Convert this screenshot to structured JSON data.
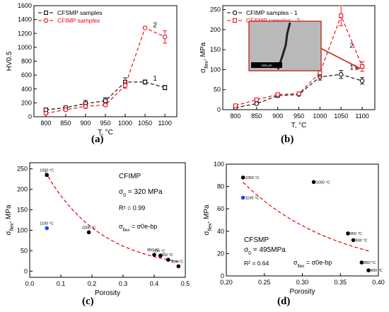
{
  "panel_labels": [
    "(a)",
    "(b)",
    "(c)",
    "(d)"
  ],
  "chart_data": [
    {
      "type": "line",
      "panel": "(a)",
      "xlabel": "T, °C",
      "ylabel": "HV0.5",
      "x": [
        800,
        850,
        900,
        950,
        1000,
        1050,
        1100
      ],
      "xlim": [
        770,
        1130
      ],
      "ylim": [
        0,
        1600
      ],
      "xticks": [
        800,
        850,
        900,
        950,
        1000,
        1050,
        1100
      ],
      "yticks": [
        0,
        200,
        400,
        600,
        800,
        1000,
        1200,
        1400,
        1600
      ],
      "series": [
        {
          "name": "CFSMP samples",
          "color": "#000000",
          "marker": "square",
          "values": [
            100,
            130,
            190,
            230,
            500,
            500,
            420
          ],
          "errors": [
            25,
            20,
            45,
            45,
            60,
            30,
            30
          ]
        },
        {
          "name": "CFIMP samples",
          "color": "#e8000b",
          "marker": "circle",
          "values": [
            50,
            100,
            150,
            170,
            450,
            1280,
            1150
          ],
          "errors": [
            20,
            15,
            30,
            20,
            40,
            15,
            90
          ]
        }
      ],
      "curve_labels": [
        {
          "text": "1",
          "x": 1075,
          "y": 520
        },
        {
          "text": "2",
          "x": 1075,
          "y": 1290
        }
      ],
      "legend": "top-left"
    },
    {
      "type": "line",
      "panel": "(b)",
      "xlabel": "T, °C",
      "ylabel": "σflex, MPa",
      "x": [
        800,
        850,
        900,
        950,
        1000,
        1050,
        1100
      ],
      "xlim": [
        770,
        1130
      ],
      "ylim": [
        0,
        260
      ],
      "xticks": [
        800,
        850,
        900,
        950,
        1000,
        1050,
        1100
      ],
      "yticks": [
        0,
        50,
        100,
        150,
        200,
        250
      ],
      "series": [
        {
          "name": "CFIMP samples - 1",
          "color": "#000000",
          "marker": "circle",
          "values": [
            5,
            15,
            35,
            38,
            82,
            88,
            72
          ],
          "errors": [
            2,
            3,
            4,
            3,
            8,
            10,
            8
          ]
        },
        {
          "name": "CFSMP samples - 2",
          "color": "#e8000b",
          "marker": "square",
          "values": [
            10,
            25,
            38,
            40,
            92,
            235,
            108
          ],
          "errors": [
            3,
            3,
            4,
            3,
            10,
            25,
            12
          ]
        }
      ],
      "curve_labels": [
        {
          "text": "1",
          "x": 1075,
          "y": 100
        },
        {
          "text": "2",
          "x": 1075,
          "y": 155
        }
      ],
      "inset": {
        "scale_bar": "150 µm"
      },
      "legend": "top-left"
    },
    {
      "type": "scatter",
      "panel": "(c)",
      "xlabel": "Porosity",
      "ylabel": "σflex, MPa",
      "xlim": [
        0.0,
        0.5
      ],
      "ylim": [
        -15,
        265
      ],
      "xticks": [
        0.0,
        0.1,
        0.2,
        0.3,
        0.4,
        0.5
      ],
      "yticks": [
        0,
        50,
        100,
        150,
        200,
        250
      ],
      "points": [
        {
          "x": 0.055,
          "y": 235,
          "label": "1050 °C",
          "color": "#000000"
        },
        {
          "x": 0.055,
          "y": 105,
          "label": "1100 °C",
          "color": "#1f3fff"
        },
        {
          "x": 0.19,
          "y": 95,
          "label": "1000 °C",
          "color": "#000000"
        },
        {
          "x": 0.4,
          "y": 40,
          "label": "950 °C",
          "color": "#000000"
        },
        {
          "x": 0.42,
          "y": 38,
          "label": "900 °C",
          "color": "#000000"
        },
        {
          "x": 0.445,
          "y": 28,
          "label": "850 °C",
          "color": "#000000"
        },
        {
          "x": 0.478,
          "y": 12,
          "label": "800 °C",
          "color": "#000000"
        }
      ],
      "fit": {
        "color": "#e8000b",
        "sigma0": 320,
        "b": 5.5,
        "x_range": [
          0.05,
          0.48
        ]
      },
      "annotations": [
        "CFIMP",
        "σ0 = 320 MPa",
        "R² = 0.99",
        "σflex = σ0e-bp"
      ]
    },
    {
      "type": "scatter",
      "panel": "(d)",
      "xlabel": "Porosity",
      "ylabel": "σflex, MPa",
      "xlim": [
        0.2,
        0.4
      ],
      "ylim": [
        0,
        100
      ],
      "xticks": [
        0.2,
        0.25,
        0.3,
        0.35,
        0.4
      ],
      "yticks": [
        0,
        20,
        40,
        60,
        80,
        100
      ],
      "points": [
        {
          "x": 0.222,
          "y": 88,
          "label": "1050 °C",
          "color": "#000000"
        },
        {
          "x": 0.222,
          "y": 70,
          "label": "1100 °C",
          "color": "#1f3fff"
        },
        {
          "x": 0.315,
          "y": 84,
          "label": "1000 °C",
          "color": "#000000"
        },
        {
          "x": 0.36,
          "y": 38,
          "label": "950 °C",
          "color": "#000000"
        },
        {
          "x": 0.367,
          "y": 32,
          "label": "900 °C",
          "color": "#000000"
        },
        {
          "x": 0.378,
          "y": 12,
          "label": "850 °C",
          "color": "#000000"
        },
        {
          "x": 0.387,
          "y": 5,
          "label": "800 °C",
          "color": "#000000"
        }
      ],
      "fit": {
        "color": "#e8000b",
        "sigma0": 495,
        "b": 8.0,
        "x_range": [
          0.222,
          0.388
        ]
      },
      "annotations": [
        "CFSMP",
        "σ0 = 495MPa",
        "R² = 0.64",
        "σflex = σ0e-bp"
      ]
    }
  ]
}
